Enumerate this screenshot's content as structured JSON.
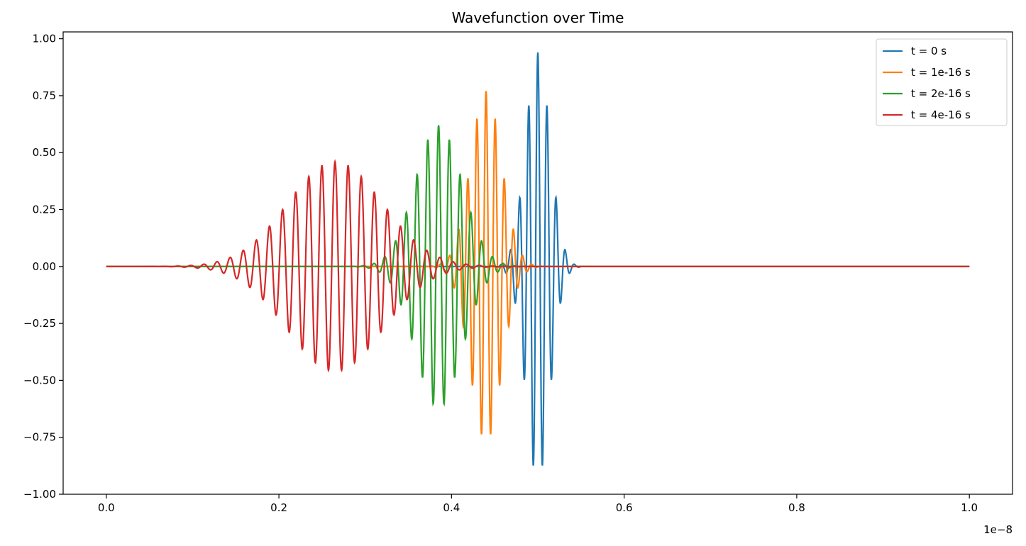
{
  "chart_data": {
    "type": "line",
    "title": "Wavefunction over Time",
    "xlabel": "",
    "ylabel": "",
    "xlim": [
      -5e-10,
      1.05e-08
    ],
    "ylim": [
      -1.0,
      1.03
    ],
    "x_offset_label": "1e−8",
    "x_ticks": [
      0.0,
      0.2,
      0.4,
      0.6,
      0.8,
      1.0
    ],
    "x_tick_labels": [
      "0.0",
      "0.2",
      "0.4",
      "0.6",
      "0.8",
      "1.0"
    ],
    "y_ticks": [
      -1.0,
      -0.75,
      -0.5,
      -0.25,
      0.0,
      0.25,
      0.5,
      0.75,
      1.0
    ],
    "y_tick_labels": [
      "−1.00",
      "−0.75",
      "−0.50",
      "−0.25",
      "0.00",
      "0.25",
      "0.50",
      "0.75",
      "1.00"
    ],
    "grid": false,
    "legend_position": "top-right",
    "x_domain": [
      0.0,
      1e-08
    ],
    "series": [
      {
        "name": "t = 0 s",
        "color": "#1f77b4",
        "center": 5e-09,
        "width": 1.4e-10,
        "wavelength": 1.06e-10,
        "amplitude": 0.94
      },
      {
        "name": "t = 1e-16 s",
        "color": "#ff7f0e",
        "center": 4.4e-09,
        "width": 1.8e-10,
        "wavelength": 1.06e-10,
        "amplitude": 0.77
      },
      {
        "name": "t = 2e-16 s",
        "color": "#2ca02c",
        "center": 3.85e-09,
        "width": 2.7e-10,
        "wavelength": 1.25e-10,
        "amplitude": 0.62
      },
      {
        "name": "t = 4e-16 s",
        "color": "#d62728",
        "center": 2.65e-09,
        "width": 5.5e-10,
        "wavelength": 1.52e-10,
        "amplitude": 0.46
      }
    ]
  }
}
